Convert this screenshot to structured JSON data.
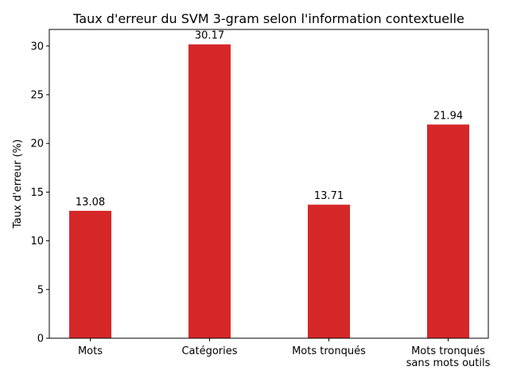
{
  "chart_data": {
    "type": "bar",
    "title": "Taux d'erreur du SVM 3-gram selon l'information contextuelle",
    "xlabel": "",
    "ylabel": "Taux d'erreur (%)",
    "categories": [
      [
        "Mots"
      ],
      [
        "Catégories"
      ],
      [
        "Mots tronqués"
      ],
      [
        "Mots tronqués",
        "sans mots outils"
      ]
    ],
    "values": [
      13.08,
      30.17,
      13.71,
      21.94
    ],
    "value_labels": [
      "13.08",
      "30.17",
      "13.71",
      "21.94"
    ],
    "ylim": [
      0,
      31.7
    ],
    "yticks": [
      0,
      5,
      10,
      15,
      20,
      25,
      30
    ],
    "grid": false,
    "bar_color": "#d62728"
  }
}
